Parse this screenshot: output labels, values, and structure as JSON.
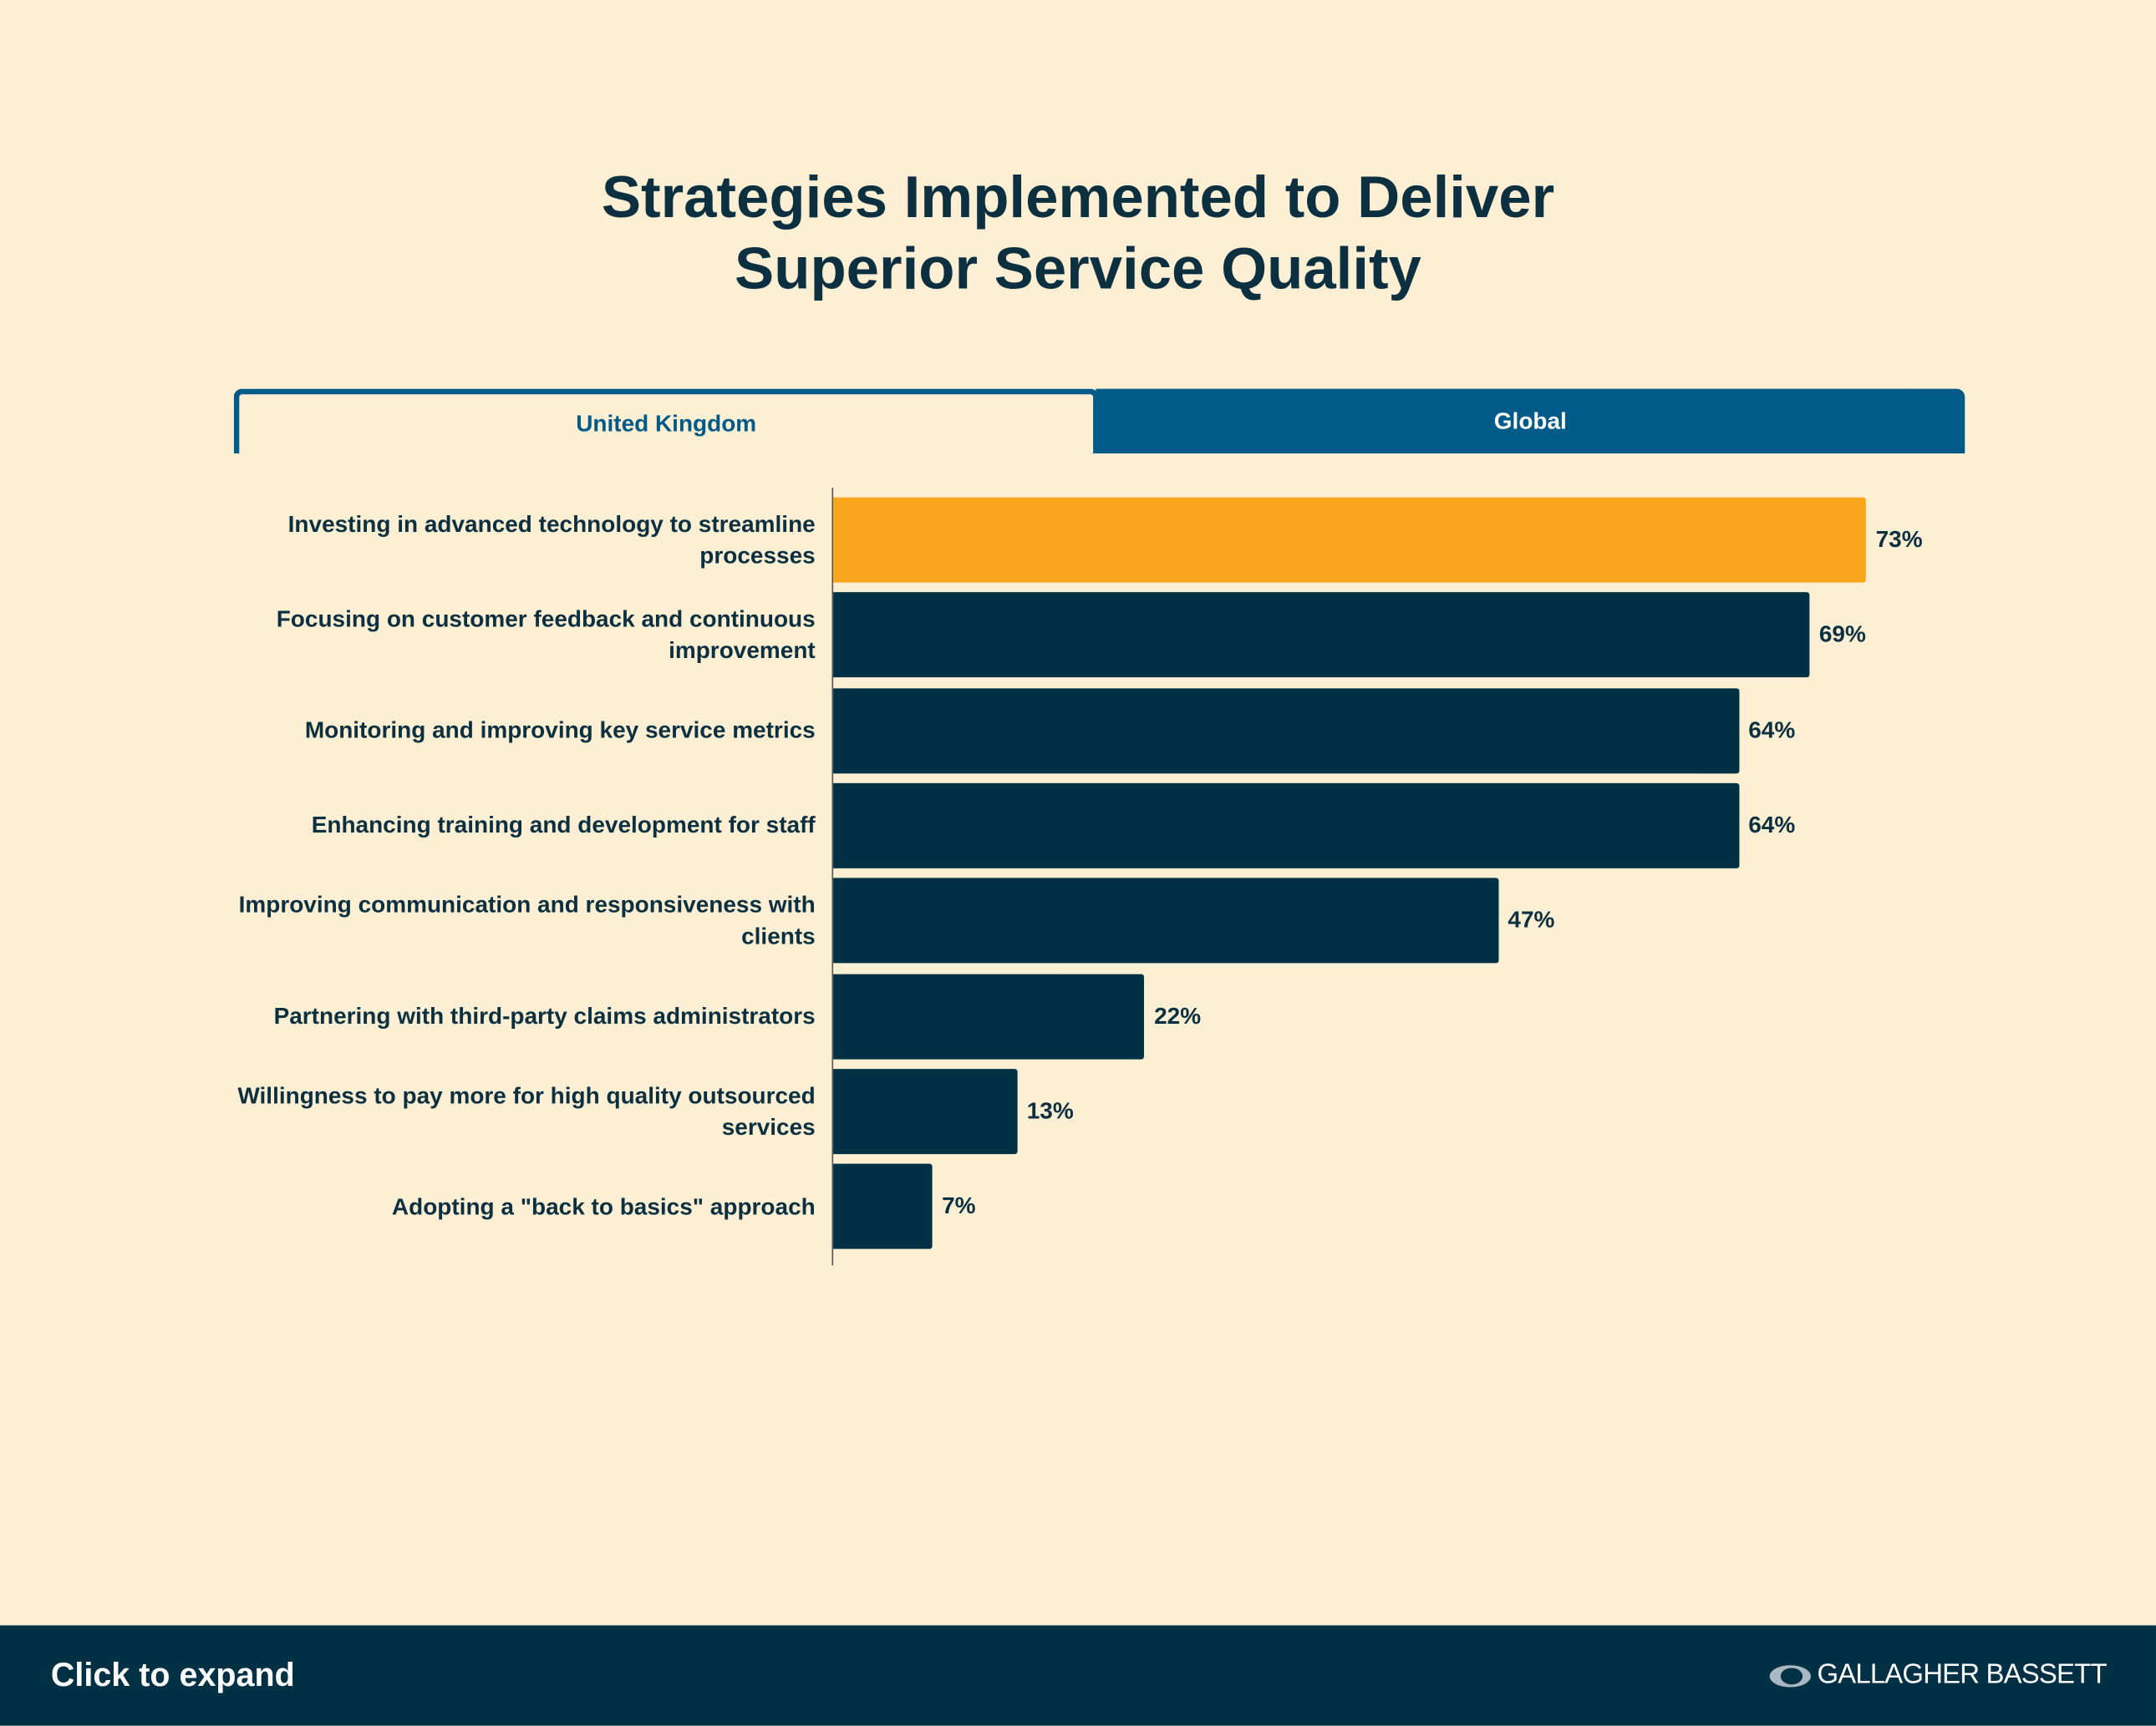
{
  "chart_data": {
    "type": "bar",
    "orientation": "horizontal",
    "title": "Strategies Implemented to Deliver Superior Service Quality",
    "tabs": [
      "United Kingdom",
      "Global"
    ],
    "categories": [
      "Investing in advanced technology to streamline processes",
      "Focusing on customer feedback and continuous improvement",
      "Monitoring and improving key service metrics",
      "Enhancing training and development for staff",
      "Improving communication and responsiveness with clients",
      "Partnering with third-party claims administrators",
      "Willingness to pay more for high quality outsourced services",
      "Adopting a \"back to basics\" approach"
    ],
    "values": [
      73,
      69,
      64,
      64,
      47,
      22,
      13,
      7
    ],
    "value_labels": [
      "73%",
      "69%",
      "64%",
      "64%",
      "47%",
      "22%",
      "13%",
      "7%"
    ],
    "colors": [
      "#f9a61c",
      "#003044",
      "#003044",
      "#003044",
      "#003044",
      "#003044",
      "#003044",
      "#003044"
    ],
    "xlim": [
      0,
      100
    ]
  },
  "footer": {
    "action": "Click to expand",
    "logo": "GALLAGHER BASSETT"
  }
}
